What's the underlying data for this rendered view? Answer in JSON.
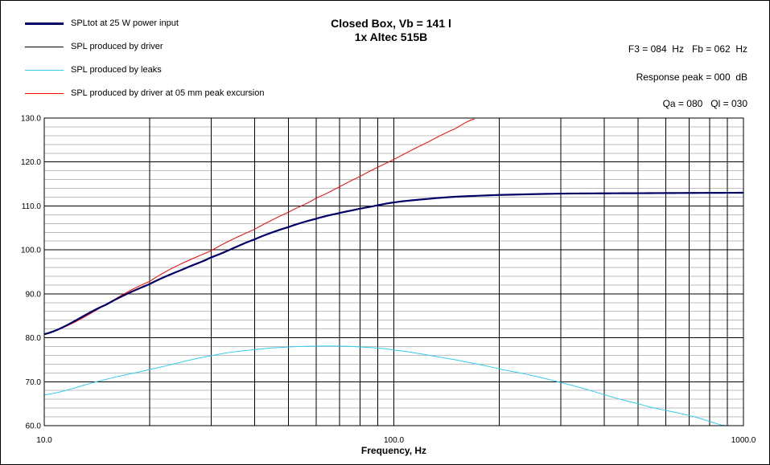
{
  "chart_data": {
    "type": "line",
    "title": "Closed Box, Vb = 141 l",
    "subtitle": "1x Altec 515B",
    "xlabel": "Frequency, Hz",
    "ylabel": "",
    "x_scale": "log",
    "xlim": [
      10,
      1000
    ],
    "ylim": [
      60,
      130
    ],
    "x_ticks": [
      "10.0",
      "100.0",
      "1000.0"
    ],
    "y_ticks": [
      "60.0",
      "70.0",
      "80.0",
      "90.0",
      "100.0",
      "110.0",
      "120.0",
      "130.0"
    ],
    "grid": true,
    "legend_position": "top-left",
    "series": [
      {
        "name": "SPLtot at 25 W power input",
        "color": "#000066",
        "x": [
          10,
          15,
          20,
          25,
          30,
          40,
          50,
          60,
          70,
          80,
          100,
          125,
          150,
          200,
          300,
          500,
          1000
        ],
        "y": [
          80.8,
          87.5,
          92.2,
          95.6,
          98.3,
          102.4,
          105.2,
          107.1,
          108.4,
          109.4,
          110.8,
          111.6,
          112.1,
          112.5,
          112.8,
          112.9,
          113.0
        ]
      },
      {
        "name": "SPL produced by driver",
        "color": "#000000",
        "x": [
          10,
          15,
          20,
          25,
          30,
          40,
          50,
          60,
          70,
          80,
          100,
          125,
          150,
          200,
          300,
          500,
          1000
        ],
        "y": [
          80.8,
          87.5,
          92.2,
          95.6,
          98.3,
          102.4,
          105.2,
          107.1,
          108.4,
          109.4,
          110.8,
          111.6,
          112.1,
          112.5,
          112.8,
          112.9,
          113.0
        ]
      },
      {
        "name": "SPL produced by leaks",
        "color": "#33CCEE",
        "x": [
          10,
          15,
          20,
          30,
          40,
          50,
          60,
          70,
          80,
          100,
          150,
          200,
          300,
          500,
          700,
          1000
        ],
        "y": [
          67.0,
          70.5,
          72.8,
          75.9,
          77.3,
          77.9,
          78.1,
          78.1,
          77.9,
          77.2,
          75.0,
          72.9,
          69.8,
          65.0,
          62.3,
          59.0
        ]
      },
      {
        "name": "SPL produced by driver at 05 mm peak excursion",
        "color": "#FF0000",
        "x": [
          10,
          20,
          30,
          40,
          50,
          60,
          80,
          100,
          125,
          150,
          170
        ],
        "y": [
          80.8,
          92.8,
          99.8,
          104.7,
          108.6,
          111.8,
          116.7,
          120.6,
          124.5,
          127.6,
          129.8
        ]
      }
    ]
  },
  "info": {
    "f3_fb": "F3 = 084  Hz   Fb = 062  Hz",
    "response_peak": "Response peak = 000  dB",
    "qa_ql": "Qa = 080   Ql = 030"
  }
}
